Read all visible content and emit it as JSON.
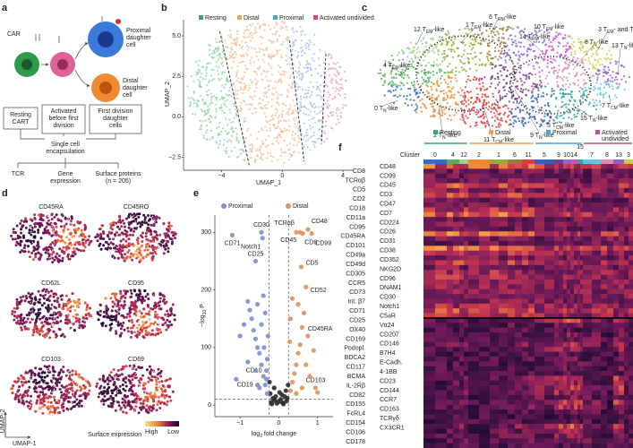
{
  "figure": {
    "panel_labels": [
      "a",
      "b",
      "c",
      "d",
      "e",
      "f"
    ],
    "panel_a": {
      "car": "CAR",
      "proximal": [
        "Proximal",
        "daughter",
        "cell"
      ],
      "distal": [
        "Distal",
        "daughter",
        "cell"
      ],
      "boxes": [
        [
          "Resting",
          "CART"
        ],
        [
          "Activated",
          "before first",
          "division"
        ],
        [
          "First division",
          "daughter",
          "cells"
        ]
      ],
      "encapsulation": [
        "Single cell",
        "encapsulation"
      ],
      "outputs": [
        [
          "TCR"
        ],
        [
          "Gene",
          "expression"
        ],
        [
          "Surface proteins",
          "(n = 205)"
        ]
      ]
    },
    "panel_b": {
      "legend": [
        {
          "name": "Resting",
          "color": "#3aa66a"
        },
        {
          "name": "Distal",
          "color": "#f0a05a"
        },
        {
          "name": "Proximal",
          "color": "#4aa5e0"
        },
        {
          "name": "Activated undivided",
          "color": "#d24a8a"
        }
      ],
      "xlabel": "UMAP_1",
      "ylabel": "UMAP_2",
      "xlim": [
        -6.5,
        4.7
      ],
      "ylim": [
        -3.3,
        6.0
      ],
      "xticks": [
        {
          "value": -4,
          "label": "−4"
        },
        0,
        4
      ],
      "yticks": [
        {
          "value": -2.5,
          "label": "−2.5"
        },
        {
          "value": 0,
          "label": "0.0"
        },
        2.5,
        {
          "value": 5,
          "label": "5.0"
        }
      ]
    },
    "panel_c": {
      "clusters": [
        {
          "parts": [
            "12 T",
            "EM",
            "-like"
          ],
          "color": "#9fd08a"
        },
        {
          "parts": [
            "1 T",
            "EM",
            "-like"
          ],
          "color": "#8fae3a"
        },
        {
          "parts": [
            "6 T",
            "RM",
            "-like"
          ],
          "color": "#a0783a"
        },
        {
          "parts": [
            "10 T",
            "EM",
            "-like"
          ],
          "color": "#8a6ad0"
        },
        {
          "parts": [
            "3 T",
            "EM",
            "- and T",
            "RM",
            "-like"
          ],
          "color": "#c8d040"
        },
        {
          "parts": [
            "14 T",
            "RM",
            "-like"
          ],
          "color": "#d050c0"
        },
        {
          "parts": [
            "8 T",
            "N",
            "-like"
          ],
          "color": "#e88ab0"
        },
        {
          "parts": [
            "13 T",
            "N",
            "-like"
          ],
          "color": "#9a5ad0"
        },
        {
          "parts": [
            "4 T",
            "EM",
            "-like"
          ],
          "color": "#55b060"
        },
        {
          "parts": [
            "0 T",
            "N",
            "-like"
          ],
          "color": "#2f6fd0"
        },
        {
          "parts": [
            "7 T",
            "CM",
            "-like"
          ],
          "color": "#5ac8e8"
        },
        {
          "parts": [
            "15 T",
            "N",
            "-like"
          ],
          "color": "#3aa0a0"
        },
        {
          "parts": [
            "5 T",
            "CM",
            "-like"
          ],
          "color": "#3060c0"
        },
        {
          "parts": [
            "2 T",
            "N",
            "-like"
          ],
          "color": "#f08a30"
        },
        {
          "parts": [
            "11 T",
            "CM",
            "-like"
          ],
          "color": "#e03a3a"
        },
        {
          "parts": [
            "9 T",
            "N",
            "-like"
          ],
          "color": "#7a3a8a"
        }
      ]
    },
    "panel_d": {
      "plots": [
        "CD45RA",
        "CD45RO",
        "CD62L",
        "CD95",
        "CD103",
        "CD69"
      ],
      "ylabel": "UMAP-2",
      "xlabel": "UMAP-1",
      "colorbar_title": "Surface expression",
      "colorbar_labels": [
        "High",
        "Low"
      ]
    },
    "panel_e": {
      "xlabel": [
        "log",
        "2",
        " fold change"
      ],
      "ylabel": [
        "−log",
        "10",
        " P"
      ],
      "xlim": [
        -1.65,
        1.4
      ],
      "ylim": [
        -20,
        330
      ],
      "xticks": [
        {
          "value": -1,
          "label": "−1"
        },
        0,
        1
      ],
      "yticks": [
        0,
        100,
        200,
        300
      ],
      "thresholds": {
        "x": [
          -0.25,
          0.25
        ],
        "y": 10
      },
      "series": [
        {
          "name": "Proximal",
          "color": "#7b8fd0",
          "x": [
            -0.45,
            -1.2,
            -0.42,
            -0.6,
            -0.32,
            -0.55,
            -0.3,
            -0.35,
            -0.4,
            -0.45,
            -0.5,
            -0.55,
            -0.6,
            -0.65,
            -0.7,
            -0.75,
            -0.8,
            -0.9,
            -1.0,
            -0.3,
            -0.28,
            -0.35,
            -0.4,
            -0.6,
            -0.8,
            -0.5,
            -1.1,
            -0.45,
            -0.55,
            -0.38,
            -0.32
          ],
          "y": [
            300,
            295,
            290,
            250,
            60,
            35,
            20,
            35,
            50,
            70,
            90,
            100,
            115,
            130,
            150,
            165,
            180,
            140,
            120,
            80,
            120,
            160,
            190,
            60,
            75,
            30,
            45,
            140,
            175,
            100,
            45
          ],
          "labels": [
            "CD30",
            "CD71",
            "Notch1",
            "CD25",
            "CD10",
            "CD19",
            null,
            null,
            null,
            null,
            null,
            null,
            null,
            null,
            null,
            null,
            null,
            null,
            null,
            null,
            null,
            null,
            null,
            null,
            null,
            null,
            null,
            null,
            null,
            null,
            null
          ]
        },
        {
          "name": "Distal",
          "color": "#e0905a",
          "x": [
            0.45,
            0.55,
            0.75,
            0.62,
            0.85,
            0.58,
            0.7,
            0.75,
            0.95,
            0.3,
            0.35,
            0.4,
            0.45,
            0.5,
            0.55,
            0.6,
            0.65,
            0.3,
            0.28,
            0.35,
            0.5,
            0.7,
            0.8,
            0.45,
            0.6,
            1.0,
            0.9
          ],
          "y": [
            300,
            300,
            305,
            298,
            298,
            240,
            205,
            120,
            30,
            25,
            40,
            55,
            70,
            90,
            105,
            135,
            160,
            150,
            110,
            185,
            175,
            70,
            50,
            20,
            30,
            22,
            95
          ],
          "labels": [
            "TCRαβ",
            "CD45",
            "CD48",
            "CD8",
            "CD99",
            "CD5",
            "CD52",
            "CD45RA",
            "CD103",
            null,
            null,
            null,
            null,
            null,
            null,
            null,
            null,
            null,
            null,
            null,
            null,
            null,
            null,
            null,
            null,
            null,
            null
          ]
        },
        {
          "color": "#2a2a2a",
          "x": [
            -0.2,
            -0.15,
            -0.1,
            -0.05,
            0,
            0.05,
            0.1,
            0.15,
            0.2,
            -0.22,
            0.18,
            -0.12,
            0.08,
            0.22,
            -0.18,
            0.02,
            -0.08,
            0.12,
            -0.24,
            0.24
          ],
          "y": [
            5,
            12,
            8,
            3,
            6,
            10,
            4,
            15,
            7,
            20,
            25,
            30,
            18,
            12,
            2,
            22,
            15,
            2,
            40,
            35
          ]
        }
      ]
    },
    "panel_f": {
      "cluster_title": "Cluster",
      "groups": [
        {
          "name": [
            "Resting"
          ],
          "color": "#3aa66a",
          "clusters": [
            {
              "label": "0",
              "color": "#2f6fd0"
            },
            {
              "label": "4",
              "color": "#55b060"
            },
            {
              "label": "12",
              "color": "#9fd08a"
            }
          ]
        },
        {
          "name": [
            "Distal"
          ],
          "color": "#f0a05a",
          "clusters": [
            {
              "label": "2",
              "color": "#f08a30"
            },
            {
              "label": "1",
              "color": "#8fae3a"
            },
            {
              "label": "6",
              "color": "#a0783a"
            },
            {
              "label": "11",
              "color": "#e03a3a"
            }
          ]
        },
        {
          "name": [
            "Proximal"
          ],
          "color": "#4aa5e0",
          "clusters": [
            {
              "label": "5",
              "color": "#3060c0"
            },
            {
              "label": "9",
              "color": "#7a3a8a"
            },
            {
              "label": "10",
              "color": "#8a6ad0"
            },
            {
              "label": "14",
              "color": "#d050c0"
            },
            {
              "label": "15",
              "color": "#3aa0a0"
            }
          ]
        },
        {
          "name": [
            "Activated",
            "undivided"
          ],
          "color": "#d24a8a",
          "clusters": [
            {
              "label": "7",
              "color": "#5ac8e8"
            },
            {
              "label": "8",
              "color": "#e88ab0"
            },
            {
              "label": "13",
              "color": "#9a5ad0"
            },
            {
              "label": "3",
              "color": "#c8d040"
            }
          ]
        }
      ],
      "markers_left": [
        "CD8",
        "TCRαβ",
        "CD5",
        "CD2",
        "CD18",
        "CD11a",
        "CD95",
        "CD45RA",
        "CD101",
        "CD49a",
        "CD49d",
        "CD305",
        "CCR5",
        "CD73",
        "Int. β7",
        "CD71",
        "CD25",
        "OX40",
        "CD169",
        "Podopl.",
        "BDCA2",
        "CD117",
        "BCMA",
        "IL-2Rβ",
        "CD82",
        "CD155",
        "FcRL4",
        "CD154",
        "CD106",
        "CD178"
      ],
      "markers_right": [
        "CD48",
        "CD99",
        "CD45",
        "CD3",
        "CD47",
        "CD7",
        "CD224",
        "CD26",
        "CD31",
        "CD38",
        "CD352",
        "NKG2D",
        "CD96",
        "DNAM1",
        "CD30",
        "Notch1",
        "C5aR",
        "Vα24",
        "CD207",
        "CD146",
        "B7H4",
        "E-Cadh.",
        "4-1BB",
        "CD23",
        "CD144",
        "CCR7",
        "CD163",
        "TCRγδ",
        "CX3CR1"
      ]
    }
  }
}
